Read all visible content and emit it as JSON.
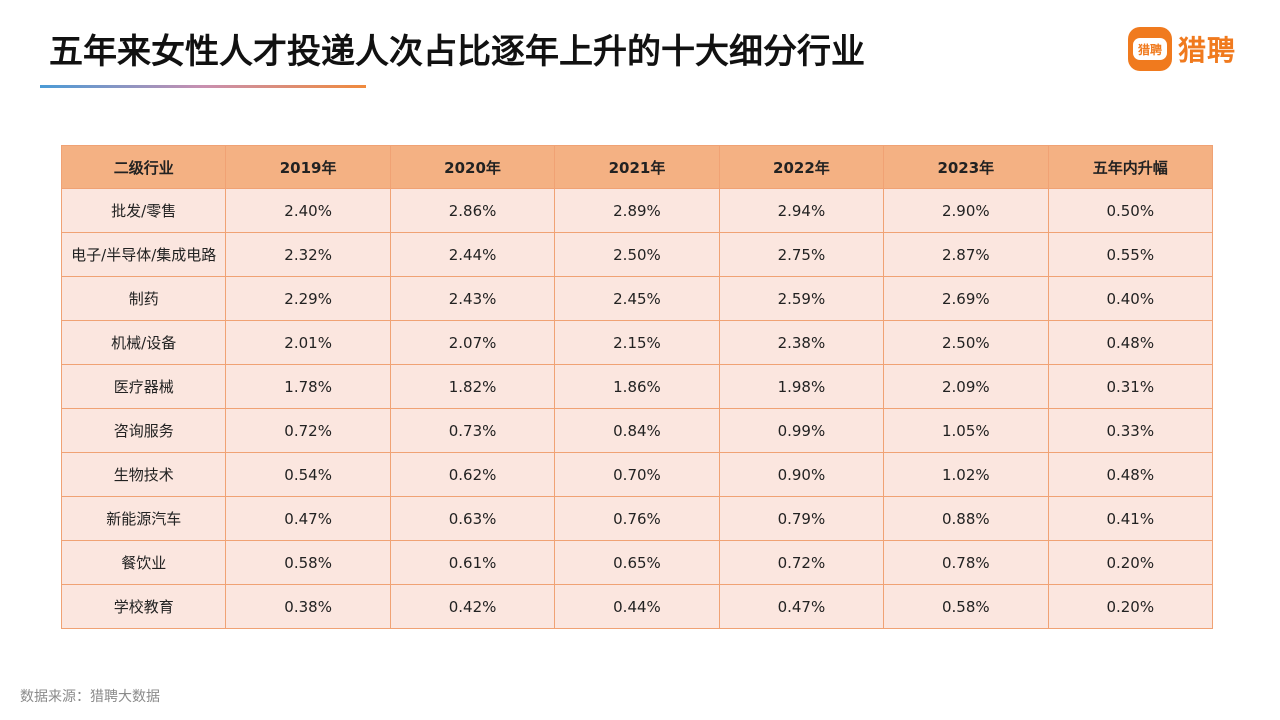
{
  "header": {
    "title": "五年来女性人才投递人次占比逐年上升的十大细分行业",
    "logo_badge_text": "猎聘",
    "logo_text": "猎聘",
    "accent_color": "#f07a1e"
  },
  "table": {
    "columns": [
      "二级行业",
      "2019年",
      "2020年",
      "2021年",
      "2022年",
      "2023年",
      "五年内升幅"
    ],
    "rows": [
      [
        "批发/零售",
        "2.40%",
        "2.86%",
        "2.89%",
        "2.94%",
        "2.90%",
        "0.50%"
      ],
      [
        "电子/半导体/集成电路",
        "2.32%",
        "2.44%",
        "2.50%",
        "2.75%",
        "2.87%",
        "0.55%"
      ],
      [
        "制药",
        "2.29%",
        "2.43%",
        "2.45%",
        "2.59%",
        "2.69%",
        "0.40%"
      ],
      [
        "机械/设备",
        "2.01%",
        "2.07%",
        "2.15%",
        "2.38%",
        "2.50%",
        "0.48%"
      ],
      [
        "医疗器械",
        "1.78%",
        "1.82%",
        "1.86%",
        "1.98%",
        "2.09%",
        "0.31%"
      ],
      [
        "咨询服务",
        "0.72%",
        "0.73%",
        "0.84%",
        "0.99%",
        "1.05%",
        "0.33%"
      ],
      [
        "生物技术",
        "0.54%",
        "0.62%",
        "0.70%",
        "0.90%",
        "1.02%",
        "0.48%"
      ],
      [
        "新能源汽车",
        "0.47%",
        "0.63%",
        "0.76%",
        "0.79%",
        "0.88%",
        "0.41%"
      ],
      [
        "餐饮业",
        "0.58%",
        "0.61%",
        "0.65%",
        "0.72%",
        "0.78%",
        "0.20%"
      ],
      [
        "学校教育",
        "0.38%",
        "0.42%",
        "0.44%",
        "0.47%",
        "0.58%",
        "0.20%"
      ]
    ]
  },
  "footer": {
    "source": "数据来源：猎聘大数据"
  }
}
